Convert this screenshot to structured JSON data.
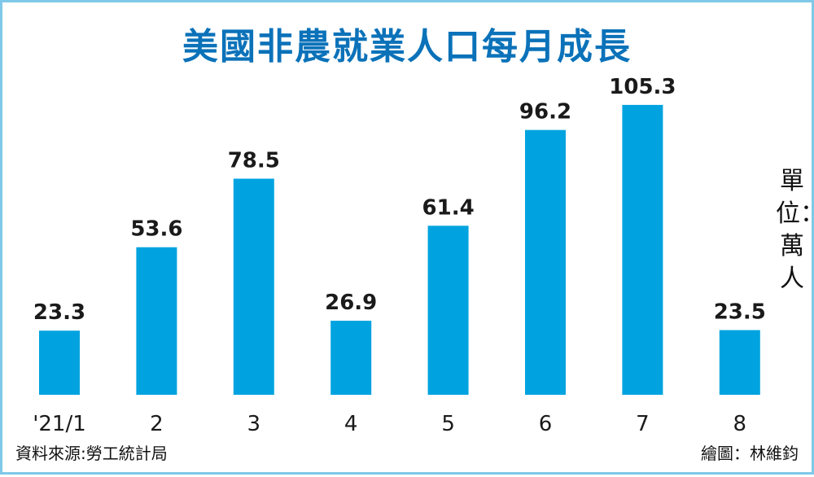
{
  "chart_data": {
    "type": "bar",
    "title": "美國非農就業人口每月成長",
    "categories": [
      "'21/1",
      "2",
      "3",
      "4",
      "5",
      "6",
      "7",
      "8"
    ],
    "values": [
      23.3,
      53.6,
      78.5,
      26.9,
      61.4,
      96.2,
      105.3,
      23.5
    ],
    "value_labels": [
      "23.3",
      "53.6",
      "78.5",
      "26.9",
      "61.4",
      "96.2",
      "105.3",
      "23.5"
    ],
    "unit_label": "單位：萬人",
    "bar_color": "#00a3e0",
    "ylim": [
      0,
      110
    ],
    "grid": false,
    "legend": "none"
  },
  "footer": {
    "source": "資料來源:勞工統計局",
    "credit": "繪圖：林維鈞"
  }
}
